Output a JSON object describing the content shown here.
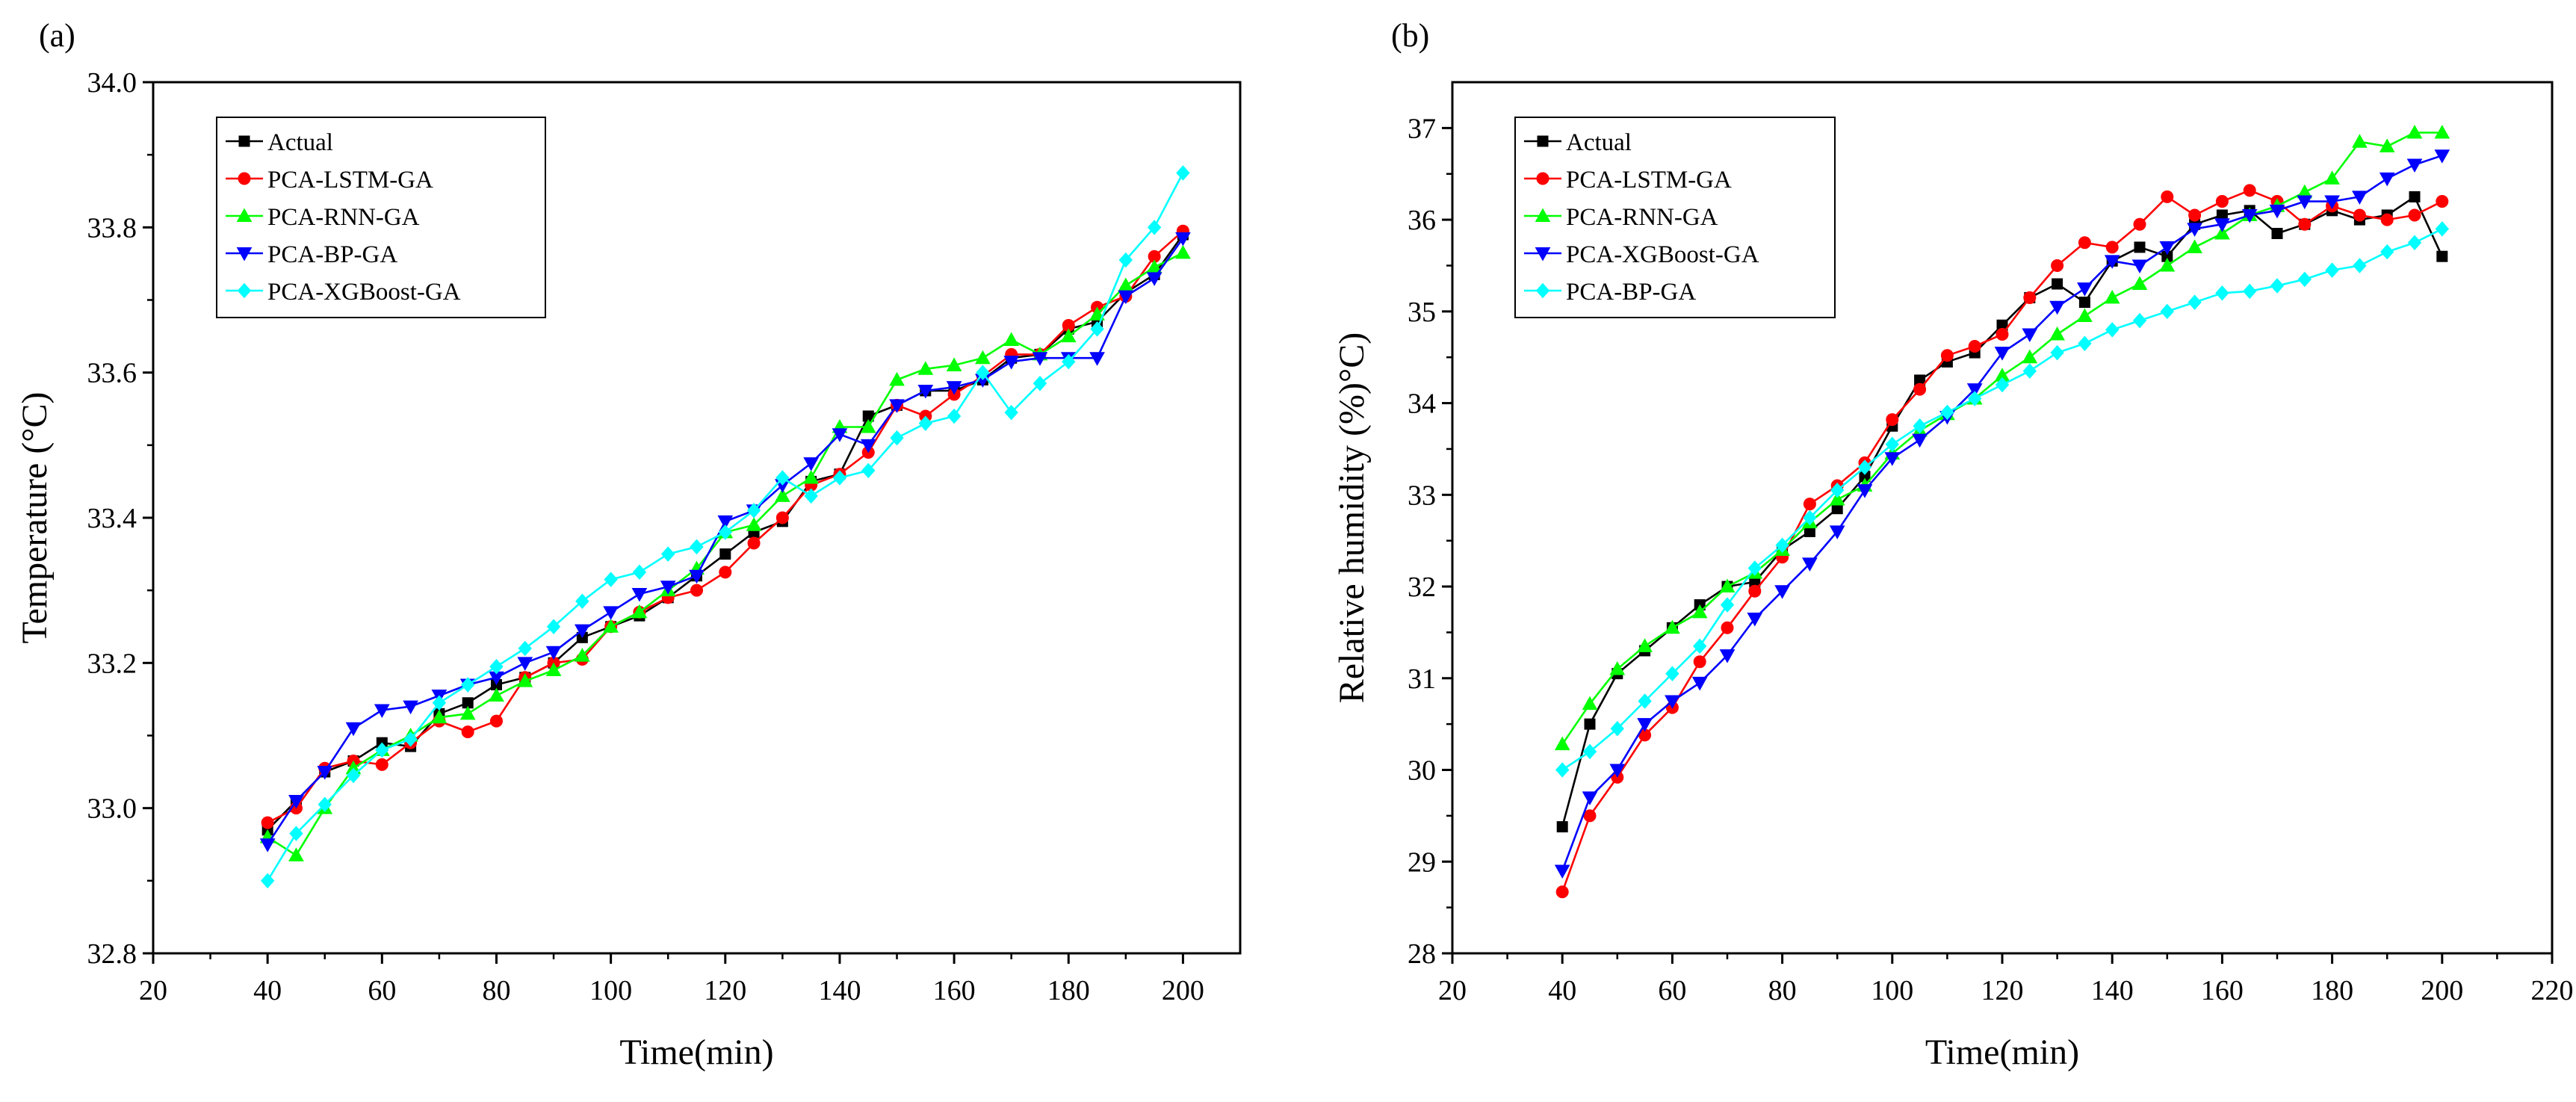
{
  "chart_data": [
    {
      "type": "line",
      "panel_label": "(a)",
      "xlabel": "Time(min)",
      "ylabel": "Temperature (°C)",
      "xlim": [
        20,
        210
      ],
      "ylim": [
        32.8,
        34.0
      ],
      "xticks": [
        20,
        40,
        60,
        80,
        100,
        120,
        140,
        160,
        180,
        200
      ],
      "xtick_labels": [
        "20",
        "40",
        "60",
        "80",
        "100",
        "120",
        "140",
        "160",
        "180",
        "200"
      ],
      "yticks": [
        32.8,
        33.0,
        33.2,
        33.4,
        33.6,
        33.8,
        34.0
      ],
      "ytick_labels": [
        "32.8",
        "33.0",
        "33.2",
        "33.4",
        "33.6",
        "33.8",
        "34.0"
      ],
      "legend_position": "top-left",
      "x": [
        40,
        45,
        50,
        55,
        60,
        65,
        70,
        75,
        80,
        85,
        90,
        95,
        100,
        105,
        110,
        115,
        120,
        125,
        130,
        135,
        140,
        145,
        150,
        155,
        160,
        165,
        170,
        175,
        180,
        185,
        190,
        195,
        200
      ],
      "series": [
        {
          "name": "Actual",
          "color": "#000000",
          "marker": "square",
          "values": [
            32.97,
            33.01,
            33.05,
            33.065,
            33.09,
            33.085,
            33.13,
            33.145,
            33.17,
            33.18,
            33.2,
            33.235,
            33.25,
            33.265,
            33.29,
            33.32,
            33.35,
            33.38,
            33.395,
            33.45,
            33.46,
            33.54,
            33.555,
            33.575,
            33.575,
            33.59,
            33.62,
            33.625,
            33.66,
            33.67,
            33.71,
            33.735,
            33.79
          ]
        },
        {
          "name": "PCA-LSTM-GA",
          "color": "#ff0000",
          "marker": "circle",
          "values": [
            32.98,
            33.0,
            33.055,
            33.065,
            33.06,
            33.09,
            33.12,
            33.105,
            33.12,
            33.18,
            33.2,
            33.205,
            33.25,
            33.27,
            33.29,
            33.3,
            33.325,
            33.365,
            33.4,
            33.445,
            33.46,
            33.49,
            33.555,
            33.54,
            33.57,
            33.595,
            33.625,
            33.625,
            33.665,
            33.69,
            33.705,
            33.76,
            33.795
          ]
        },
        {
          "name": "PCA-RNN-GA",
          "color": "#00ff00",
          "marker": "triangle-up",
          "values": [
            32.96,
            32.935,
            33.0,
            33.055,
            33.08,
            33.1,
            33.125,
            33.13,
            33.155,
            33.175,
            33.19,
            33.21,
            33.25,
            33.27,
            33.3,
            33.33,
            33.38,
            33.39,
            33.43,
            33.455,
            33.525,
            33.525,
            33.59,
            33.605,
            33.61,
            33.62,
            33.645,
            33.625,
            33.65,
            33.68,
            33.72,
            33.745,
            33.765
          ]
        },
        {
          "name": "PCA-BP-GA",
          "color": "#0000ff",
          "marker": "triangle-down",
          "values": [
            32.95,
            33.01,
            33.05,
            33.11,
            33.135,
            33.14,
            33.155,
            33.17,
            33.18,
            33.2,
            33.215,
            33.245,
            33.27,
            33.295,
            33.305,
            33.32,
            33.395,
            33.41,
            33.445,
            33.475,
            33.515,
            33.5,
            33.555,
            33.575,
            33.58,
            33.59,
            33.615,
            33.62,
            33.62,
            33.62,
            33.705,
            33.73,
            33.785
          ]
        },
        {
          "name": "PCA-XGBoost-GA",
          "color": "#00ffff",
          "marker": "diamond",
          "values": [
            32.9,
            32.965,
            33.005,
            33.045,
            33.08,
            33.095,
            33.145,
            33.17,
            33.195,
            33.22,
            33.25,
            33.285,
            33.315,
            33.325,
            33.35,
            33.36,
            33.38,
            33.41,
            33.455,
            33.43,
            33.455,
            33.465,
            33.51,
            33.53,
            33.54,
            33.6,
            33.545,
            33.585,
            33.615,
            33.66,
            33.755,
            33.8,
            33.875
          ]
        }
      ]
    },
    {
      "type": "line",
      "panel_label": "(b)",
      "xlabel": "Time(min)",
      "ylabel": "Relative humidity (%)°C)",
      "xlim": [
        20,
        220
      ],
      "ylim": [
        28,
        37.5
      ],
      "xticks": [
        20,
        40,
        60,
        80,
        100,
        120,
        140,
        160,
        180,
        200,
        220
      ],
      "xtick_labels": [
        "20",
        "40",
        "60",
        "80",
        "100",
        "120",
        "140",
        "160",
        "180",
        "200",
        "220"
      ],
      "yticks": [
        28,
        29,
        30,
        31,
        32,
        33,
        34,
        35,
        36,
        37
      ],
      "ytick_labels": [
        "28",
        "29",
        "30",
        "31",
        "32",
        "33",
        "34",
        "35",
        "36",
        "37"
      ],
      "legend_position": "top-left",
      "x": [
        40,
        45,
        50,
        55,
        60,
        65,
        70,
        75,
        80,
        85,
        90,
        95,
        100,
        105,
        110,
        115,
        120,
        125,
        130,
        135,
        140,
        145,
        150,
        155,
        160,
        165,
        170,
        175,
        180,
        185,
        190,
        195,
        200
      ],
      "series": [
        {
          "name": "Actual",
          "color": "#000000",
          "marker": "square",
          "values": [
            29.38,
            30.5,
            31.05,
            31.3,
            31.55,
            31.8,
            32.0,
            32.05,
            32.4,
            32.6,
            32.85,
            33.2,
            33.75,
            34.25,
            34.45,
            34.55,
            34.85,
            35.15,
            35.3,
            35.1,
            35.55,
            35.7,
            35.6,
            35.95,
            36.05,
            36.1,
            35.85,
            35.95,
            36.1,
            36.0,
            36.05,
            36.25,
            35.6
          ]
        },
        {
          "name": "PCA-LSTM-GA",
          "color": "#ff0000",
          "marker": "circle",
          "values": [
            28.67,
            29.5,
            29.92,
            30.38,
            30.68,
            31.18,
            31.55,
            31.95,
            32.32,
            32.9,
            33.1,
            33.35,
            33.82,
            34.15,
            34.52,
            34.62,
            34.75,
            35.15,
            35.5,
            35.75,
            35.7,
            35.95,
            36.25,
            36.05,
            36.2,
            36.32,
            36.2,
            35.95,
            36.15,
            36.05,
            36.0,
            36.05,
            36.2
          ]
        },
        {
          "name": "PCA-RNN-GA",
          "color": "#00ff00",
          "marker": "triangle-up",
          "values": [
            30.28,
            30.72,
            31.1,
            31.35,
            31.55,
            31.72,
            32.0,
            32.15,
            32.4,
            32.7,
            32.95,
            33.1,
            33.45,
            33.7,
            33.88,
            34.05,
            34.3,
            34.5,
            34.75,
            34.95,
            35.15,
            35.3,
            35.5,
            35.7,
            35.85,
            36.05,
            36.15,
            36.3,
            36.45,
            36.85,
            36.8,
            36.95,
            36.95
          ]
        },
        {
          "name": "PCA-XGBoost-GA",
          "color": "#0000ff",
          "marker": "triangle-down",
          "values": [
            28.9,
            29.7,
            30.0,
            30.5,
            30.75,
            30.95,
            31.25,
            31.65,
            31.95,
            32.25,
            32.6,
            33.05,
            33.4,
            33.6,
            33.85,
            34.15,
            34.55,
            34.75,
            35.05,
            35.25,
            35.55,
            35.5,
            35.7,
            35.9,
            35.95,
            36.05,
            36.1,
            36.2,
            36.2,
            36.25,
            36.45,
            36.6,
            36.7
          ]
        },
        {
          "name": "PCA-BP-GA",
          "color": "#00ffff",
          "marker": "diamond",
          "values": [
            30.0,
            30.2,
            30.45,
            30.75,
            31.05,
            31.35,
            31.8,
            32.2,
            32.45,
            32.75,
            33.05,
            33.3,
            33.55,
            33.75,
            33.9,
            34.05,
            34.2,
            34.35,
            34.55,
            34.65,
            34.8,
            34.9,
            35.0,
            35.1,
            35.2,
            35.22,
            35.28,
            35.35,
            35.45,
            35.5,
            35.65,
            35.75,
            35.9
          ]
        }
      ]
    }
  ]
}
